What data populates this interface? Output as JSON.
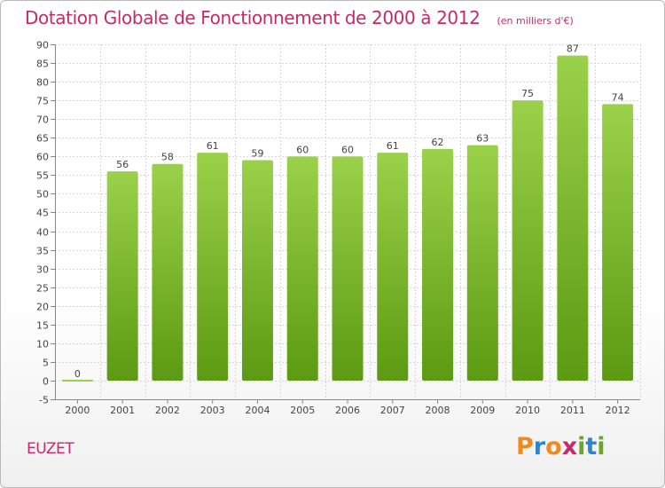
{
  "header": {
    "title": "Dotation Globale de Fonctionnement de 2000 à 2012",
    "unit": "(en milliers d'€)"
  },
  "footer": {
    "commune": "EUZET",
    "logo_text": "Proxiti",
    "logo_colors": [
      "#f08a1c",
      "#2e86c8",
      "#f08a1c",
      "#c8296b",
      "#6aa728",
      "#2e86c8",
      "#6aa728"
    ]
  },
  "colors": {
    "title": "#c8296b",
    "bar_top": "#9bd14a",
    "bar_bottom": "#5b9a12",
    "grid": "#d6d6d6",
    "axis": "#888888"
  },
  "chart_data": {
    "type": "bar",
    "title": "Dotation Globale de Fonctionnement de 2000 à 2012",
    "subtitle": "(en milliers d'€)",
    "categories": [
      "2000",
      "2001",
      "2002",
      "2003",
      "2004",
      "2005",
      "2006",
      "2007",
      "2008",
      "2009",
      "2010",
      "2011",
      "2012"
    ],
    "values": [
      0,
      56,
      58,
      61,
      59,
      60,
      60,
      61,
      62,
      63,
      75,
      87,
      74
    ],
    "data_labels": [
      "0",
      "56",
      "58",
      "61",
      "59",
      "60",
      "60",
      "61",
      "62",
      "63",
      "75",
      "87",
      "74"
    ],
    "ylim": [
      -5,
      90
    ],
    "yticks": [
      -5,
      0,
      5,
      10,
      15,
      20,
      25,
      30,
      35,
      40,
      45,
      50,
      55,
      60,
      65,
      70,
      75,
      80,
      85,
      90
    ],
    "grid": true
  }
}
